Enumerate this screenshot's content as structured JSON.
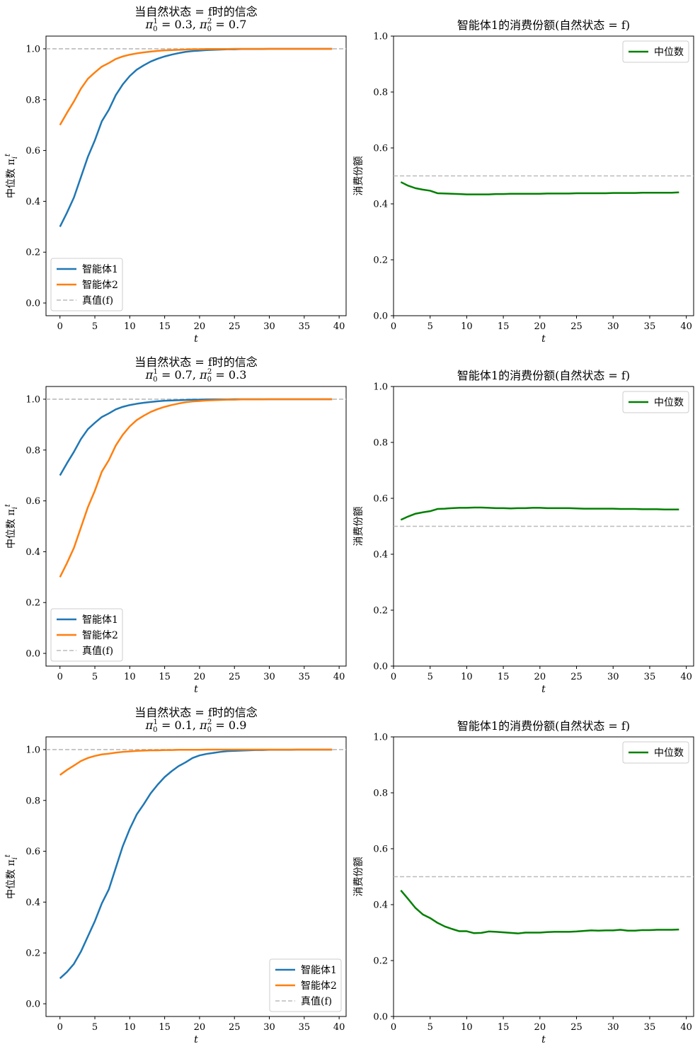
{
  "chart_data": [
    {
      "type": "line",
      "title": "当自然状态 = f时的信念",
      "subtitle_parts": {
        "p1": "π",
        "sub1": "0",
        "sup1": "1",
        "v1": " = 0.3, ",
        "p2": "π",
        "sub2": "0",
        "sup2": "2",
        "v2": " = 0.7"
      },
      "xlabel": "t",
      "ylabel": "中位数 π",
      "ylabel_sub": "i",
      "ylabel_sup": "t",
      "xlim": [
        -2,
        41
      ],
      "ylim": [
        -0.05,
        1.05
      ],
      "xticks": [
        0,
        5,
        10,
        15,
        20,
        25,
        30,
        35,
        40
      ],
      "yticks": [
        0.0,
        0.2,
        0.4,
        0.6,
        0.8,
        1.0
      ],
      "x": [
        0,
        1,
        2,
        3,
        4,
        5,
        6,
        7,
        8,
        9,
        10,
        11,
        12,
        13,
        14,
        15,
        16,
        17,
        18,
        19,
        20,
        21,
        22,
        23,
        24,
        25,
        26,
        27,
        28,
        29,
        30,
        31,
        32,
        33,
        34,
        35,
        36,
        37,
        38,
        39
      ],
      "series": [
        {
          "name": "智能体1",
          "color": "#1f77b4",
          "values": [
            0.3,
            0.355,
            0.415,
            0.495,
            0.575,
            0.64,
            0.715,
            0.76,
            0.818,
            0.86,
            0.893,
            0.918,
            0.935,
            0.95,
            0.961,
            0.97,
            0.977,
            0.983,
            0.988,
            0.991,
            0.993,
            0.995,
            0.996,
            0.997,
            0.998,
            0.998,
            0.999,
            0.999,
            0.999,
            0.999,
            1.0,
            1.0,
            1.0,
            1.0,
            1.0,
            1.0,
            1.0,
            1.0,
            1.0,
            1.0
          ]
        },
        {
          "name": "智能体2",
          "color": "#ff7f0e",
          "values": [
            0.7,
            0.748,
            0.793,
            0.843,
            0.882,
            0.907,
            0.93,
            0.944,
            0.96,
            0.97,
            0.977,
            0.982,
            0.986,
            0.989,
            0.992,
            0.994,
            0.995,
            0.996,
            0.997,
            0.998,
            0.998,
            0.999,
            0.999,
            0.999,
            0.999,
            1.0,
            1.0,
            1.0,
            1.0,
            1.0,
            1.0,
            1.0,
            1.0,
            1.0,
            1.0,
            1.0,
            1.0,
            1.0,
            1.0,
            1.0
          ]
        }
      ],
      "hline": {
        "y": 1.0,
        "name": "真值(f)",
        "color": "#bbbbbb"
      },
      "legend": "lower-left"
    },
    {
      "type": "line",
      "title": "智能体1的消费份额(自然状态 = f)",
      "xlabel": "t",
      "ylabel": "消费份额",
      "xlim": [
        0,
        41
      ],
      "ylim": [
        0.0,
        1.0
      ],
      "xticks": [
        0,
        5,
        10,
        15,
        20,
        25,
        30,
        35,
        40
      ],
      "yticks": [
        0.0,
        0.2,
        0.4,
        0.6,
        0.8,
        1.0
      ],
      "x": [
        1,
        2,
        3,
        4,
        5,
        6,
        7,
        8,
        9,
        10,
        11,
        12,
        13,
        14,
        15,
        16,
        17,
        18,
        19,
        20,
        21,
        22,
        23,
        24,
        25,
        26,
        27,
        28,
        29,
        30,
        31,
        32,
        33,
        34,
        35,
        36,
        37,
        38,
        39
      ],
      "series": [
        {
          "name": "中位数",
          "color": "#008000",
          "values": [
            0.478,
            0.465,
            0.456,
            0.451,
            0.447,
            0.438,
            0.437,
            0.436,
            0.435,
            0.434,
            0.434,
            0.434,
            0.434,
            0.435,
            0.435,
            0.436,
            0.436,
            0.436,
            0.436,
            0.436,
            0.437,
            0.437,
            0.437,
            0.437,
            0.438,
            0.438,
            0.438,
            0.438,
            0.438,
            0.439,
            0.439,
            0.439,
            0.439,
            0.44,
            0.44,
            0.44,
            0.44,
            0.44,
            0.441
          ]
        }
      ],
      "hline": {
        "y": 0.5,
        "color": "#bbbbbb"
      },
      "legend": "upper-right"
    },
    {
      "type": "line",
      "title": "当自然状态 = f时的信念",
      "subtitle_parts": {
        "p1": "π",
        "sub1": "0",
        "sup1": "1",
        "v1": " = 0.7, ",
        "p2": "π",
        "sub2": "0",
        "sup2": "2",
        "v2": " = 0.3"
      },
      "xlabel": "t",
      "ylabel": "中位数 π",
      "ylabel_sub": "i",
      "ylabel_sup": "t",
      "xlim": [
        -2,
        41
      ],
      "ylim": [
        -0.05,
        1.05
      ],
      "xticks": [
        0,
        5,
        10,
        15,
        20,
        25,
        30,
        35,
        40
      ],
      "yticks": [
        0.0,
        0.2,
        0.4,
        0.6,
        0.8,
        1.0
      ],
      "x": [
        0,
        1,
        2,
        3,
        4,
        5,
        6,
        7,
        8,
        9,
        10,
        11,
        12,
        13,
        14,
        15,
        16,
        17,
        18,
        19,
        20,
        21,
        22,
        23,
        24,
        25,
        26,
        27,
        28,
        29,
        30,
        31,
        32,
        33,
        34,
        35,
        36,
        37,
        38,
        39
      ],
      "series": [
        {
          "name": "智能体1",
          "color": "#1f77b4",
          "values": [
            0.7,
            0.748,
            0.793,
            0.843,
            0.882,
            0.907,
            0.93,
            0.944,
            0.96,
            0.97,
            0.977,
            0.982,
            0.986,
            0.989,
            0.992,
            0.994,
            0.995,
            0.996,
            0.997,
            0.998,
            0.998,
            0.999,
            0.999,
            0.999,
            0.999,
            1.0,
            1.0,
            1.0,
            1.0,
            1.0,
            1.0,
            1.0,
            1.0,
            1.0,
            1.0,
            1.0,
            1.0,
            1.0,
            1.0,
            1.0
          ]
        },
        {
          "name": "智能体2",
          "color": "#ff7f0e",
          "values": [
            0.3,
            0.355,
            0.415,
            0.495,
            0.575,
            0.64,
            0.715,
            0.76,
            0.818,
            0.86,
            0.893,
            0.918,
            0.935,
            0.95,
            0.961,
            0.97,
            0.977,
            0.983,
            0.988,
            0.991,
            0.993,
            0.995,
            0.996,
            0.997,
            0.998,
            0.998,
            0.999,
            0.999,
            0.999,
            0.999,
            1.0,
            1.0,
            1.0,
            1.0,
            1.0,
            1.0,
            1.0,
            1.0,
            1.0,
            1.0
          ]
        }
      ],
      "hline": {
        "y": 1.0,
        "name": "真值(f)",
        "color": "#bbbbbb"
      },
      "legend": "lower-left"
    },
    {
      "type": "line",
      "title": "智能体1的消费份额(自然状态 = f)",
      "xlabel": "t",
      "ylabel": "消费份额",
      "xlim": [
        0,
        41
      ],
      "ylim": [
        0.0,
        1.0
      ],
      "xticks": [
        0,
        5,
        10,
        15,
        20,
        25,
        30,
        35,
        40
      ],
      "yticks": [
        0.0,
        0.2,
        0.4,
        0.6,
        0.8,
        1.0
      ],
      "x": [
        1,
        2,
        3,
        4,
        5,
        6,
        7,
        8,
        9,
        10,
        11,
        12,
        13,
        14,
        15,
        16,
        17,
        18,
        19,
        20,
        21,
        22,
        23,
        24,
        25,
        26,
        27,
        28,
        29,
        30,
        31,
        32,
        33,
        34,
        35,
        36,
        37,
        38,
        39
      ],
      "series": [
        {
          "name": "中位数",
          "color": "#008000",
          "values": [
            0.523,
            0.535,
            0.545,
            0.55,
            0.554,
            0.562,
            0.563,
            0.565,
            0.566,
            0.566,
            0.567,
            0.567,
            0.566,
            0.565,
            0.565,
            0.564,
            0.565,
            0.565,
            0.566,
            0.566,
            0.565,
            0.565,
            0.565,
            0.565,
            0.564,
            0.563,
            0.563,
            0.563,
            0.563,
            0.563,
            0.562,
            0.562,
            0.562,
            0.561,
            0.561,
            0.561,
            0.56,
            0.56,
            0.56
          ]
        }
      ],
      "hline": {
        "y": 0.5,
        "color": "#bbbbbb"
      },
      "legend": "upper-right"
    },
    {
      "type": "line",
      "title": "当自然状态 = f时的信念",
      "subtitle_parts": {
        "p1": "π",
        "sub1": "0",
        "sup1": "1",
        "v1": " = 0.1, ",
        "p2": "π",
        "sub2": "0",
        "sup2": "2",
        "v2": " = 0.9"
      },
      "xlabel": "t",
      "ylabel": "中位数 π",
      "ylabel_sub": "i",
      "ylabel_sup": "t",
      "xlim": [
        -2,
        41
      ],
      "ylim": [
        -0.05,
        1.05
      ],
      "xticks": [
        0,
        5,
        10,
        15,
        20,
        25,
        30,
        35,
        40
      ],
      "yticks": [
        0.0,
        0.2,
        0.4,
        0.6,
        0.8,
        1.0
      ],
      "x": [
        0,
        1,
        2,
        3,
        4,
        5,
        6,
        7,
        8,
        9,
        10,
        11,
        12,
        13,
        14,
        15,
        16,
        17,
        18,
        19,
        20,
        21,
        22,
        23,
        24,
        25,
        26,
        27,
        28,
        29,
        30,
        31,
        32,
        33,
        34,
        35,
        36,
        37,
        38,
        39
      ],
      "series": [
        {
          "name": "智能体1",
          "color": "#1f77b4",
          "values": [
            0.1,
            0.125,
            0.157,
            0.205,
            0.265,
            0.325,
            0.395,
            0.45,
            0.535,
            0.62,
            0.688,
            0.745,
            0.785,
            0.828,
            0.862,
            0.892,
            0.915,
            0.935,
            0.95,
            0.967,
            0.977,
            0.983,
            0.987,
            0.991,
            0.994,
            0.995,
            0.996,
            0.997,
            0.998,
            0.998,
            0.999,
            0.999,
            0.999,
            0.999,
            1.0,
            1.0,
            1.0,
            1.0,
            1.0,
            1.0
          ]
        },
        {
          "name": "智能体2",
          "color": "#ff7f0e",
          "values": [
            0.9,
            0.92,
            0.937,
            0.955,
            0.967,
            0.975,
            0.981,
            0.984,
            0.988,
            0.991,
            0.993,
            0.995,
            0.996,
            0.997,
            0.997,
            0.998,
            0.998,
            0.999,
            0.999,
            0.999,
            0.999,
            1.0,
            1.0,
            1.0,
            1.0,
            1.0,
            1.0,
            1.0,
            1.0,
            1.0,
            1.0,
            1.0,
            1.0,
            1.0,
            1.0,
            1.0,
            1.0,
            1.0,
            1.0,
            1.0
          ]
        }
      ],
      "hline": {
        "y": 1.0,
        "name": "真值(f)",
        "color": "#bbbbbb"
      },
      "legend": "lower-right"
    },
    {
      "type": "line",
      "title": "智能体1的消费份额(自然状态 = f)",
      "xlabel": "t",
      "ylabel": "消费份额",
      "xlim": [
        0,
        41
      ],
      "ylim": [
        0.0,
        1.0
      ],
      "xticks": [
        0,
        5,
        10,
        15,
        20,
        25,
        30,
        35,
        40
      ],
      "yticks": [
        0.0,
        0.2,
        0.4,
        0.6,
        0.8,
        1.0
      ],
      "x": [
        1,
        2,
        3,
        4,
        5,
        6,
        7,
        8,
        9,
        10,
        11,
        12,
        13,
        14,
        15,
        16,
        17,
        18,
        19,
        20,
        21,
        22,
        23,
        24,
        25,
        26,
        27,
        28,
        29,
        30,
        31,
        32,
        33,
        34,
        35,
        36,
        37,
        38,
        39
      ],
      "series": [
        {
          "name": "中位数",
          "color": "#008000",
          "values": [
            0.451,
            0.42,
            0.388,
            0.365,
            0.352,
            0.335,
            0.322,
            0.313,
            0.305,
            0.305,
            0.298,
            0.299,
            0.304,
            0.303,
            0.301,
            0.299,
            0.297,
            0.3,
            0.3,
            0.3,
            0.302,
            0.303,
            0.303,
            0.303,
            0.304,
            0.306,
            0.308,
            0.307,
            0.308,
            0.308,
            0.31,
            0.307,
            0.307,
            0.309,
            0.309,
            0.31,
            0.31,
            0.31,
            0.311
          ]
        }
      ],
      "hline": {
        "y": 0.5,
        "color": "#bbbbbb"
      },
      "legend": "upper-right"
    }
  ]
}
